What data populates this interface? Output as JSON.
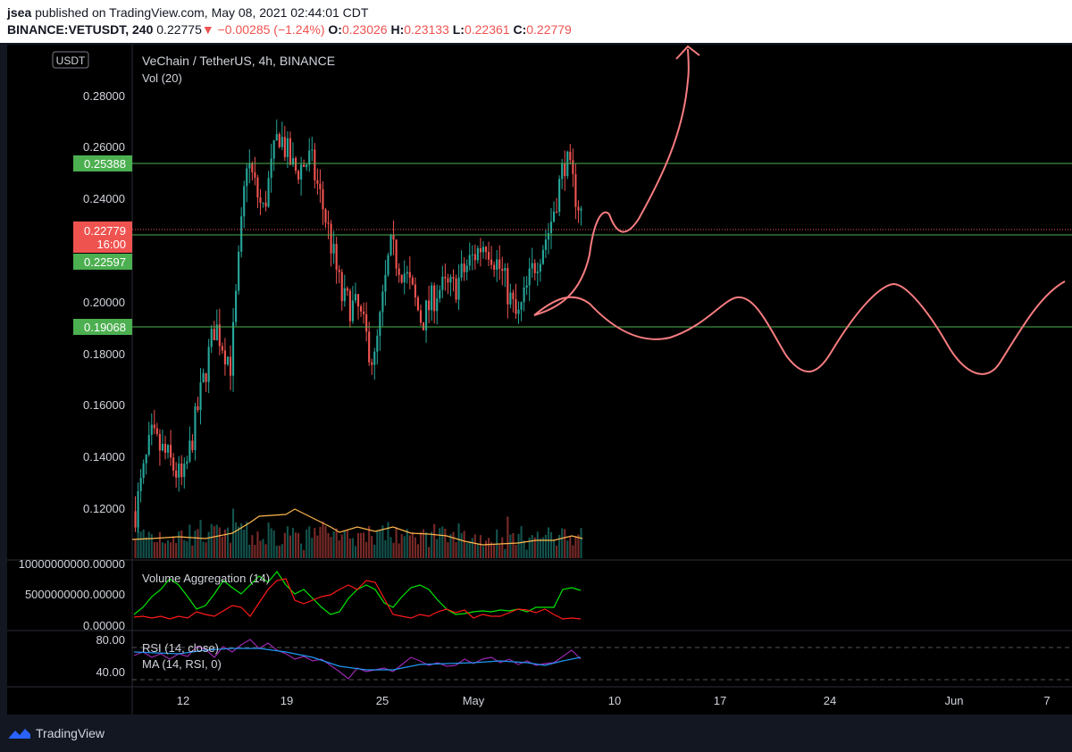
{
  "header": {
    "user": "jsea",
    "published": "published on TradingView.com, May 08, 2021 02:44:01 CDT",
    "symbol": "BINANCE:VETUSDT, 240",
    "last": "0.22775",
    "change_arrow": "▼",
    "change": "−0.00285 (−1.24%)",
    "open_label": "O:",
    "open": "0.23026",
    "high_label": "H:",
    "high": "0.23133",
    "low_label": "L:",
    "low": "0.22361",
    "close_label": "C:",
    "close": "0.22779"
  },
  "footer": {
    "brand": "TradingView",
    "logo_icon": "tradingview-logo-icon"
  },
  "colors": {
    "up": "#26a69a",
    "down": "#ef5350",
    "hline": "#4caf50",
    "drawing": "#f77c80",
    "vol_ma": "#ffb74d",
    "rsi": "#9c27b0",
    "rsi_ma": "#2196f3"
  },
  "chart_data": [
    {
      "type": "candlestick",
      "title": "VeChain / TetherUS, 4h, BINANCE",
      "currency_badge": "USDT",
      "y_ticks": [
        "0.28000",
        "0.26000",
        "0.24000",
        "0.20000",
        "0.18000",
        "0.16000",
        "0.14000",
        "0.12000"
      ],
      "ylim": [
        0.1,
        0.29
      ],
      "x_ticks": [
        "12",
        "19",
        "25",
        "May",
        "10",
        "17",
        "24",
        "Jun",
        "7"
      ],
      "price_label": {
        "value": "0.22779",
        "countdown": "16:00"
      },
      "horizontal_levels": [
        "0.25388",
        "0.22597",
        "0.19068"
      ],
      "price_path": [
        [
          "Apr 10",
          0.118
        ],
        [
          "Apr 11",
          0.145
        ],
        [
          "Apr 12",
          0.138
        ],
        [
          "Apr 13",
          0.128
        ],
        [
          "Apr 14",
          0.158
        ],
        [
          "Apr 15",
          0.187
        ],
        [
          "Apr 16",
          0.172
        ],
        [
          "Apr 17",
          0.248
        ],
        [
          "Apr 18",
          0.228
        ],
        [
          "Apr 19",
          0.258
        ],
        [
          "Apr 20",
          0.243
        ],
        [
          "Apr 21",
          0.248
        ],
        [
          "Apr 22",
          0.225
        ],
        [
          "Apr 23",
          0.196
        ],
        [
          "Apr 24",
          0.192
        ],
        [
          "Apr 25",
          0.172
        ],
        [
          "Apr 26",
          0.215
        ],
        [
          "Apr 27",
          0.205
        ],
        [
          "Apr 28",
          0.188
        ],
        [
          "Apr 29",
          0.2
        ],
        [
          "Apr 30",
          0.2
        ],
        [
          "May 1",
          0.21
        ],
        [
          "May 2",
          0.218
        ],
        [
          "May 3",
          0.206
        ],
        [
          "May 4",
          0.188
        ],
        [
          "May 5",
          0.208
        ],
        [
          "May 6",
          0.222
        ],
        [
          "May 7",
          0.248
        ],
        [
          "May 8",
          0.228
        ]
      ],
      "volume_series": {
        "name": "Vol (20)"
      }
    },
    {
      "type": "line",
      "title": "Volume Aggregation (14)",
      "y_ticks": [
        "10000000000.00000",
        "5000000000.00000",
        "0.00000"
      ],
      "series": [
        {
          "color": "green"
        },
        {
          "color": "red"
        }
      ]
    },
    {
      "type": "line",
      "y_ticks": [
        "80.00",
        "40.00"
      ],
      "series": [
        {
          "name": "RSI (14, close)"
        },
        {
          "name": "MA (14, RSI, 0)"
        }
      ]
    }
  ]
}
